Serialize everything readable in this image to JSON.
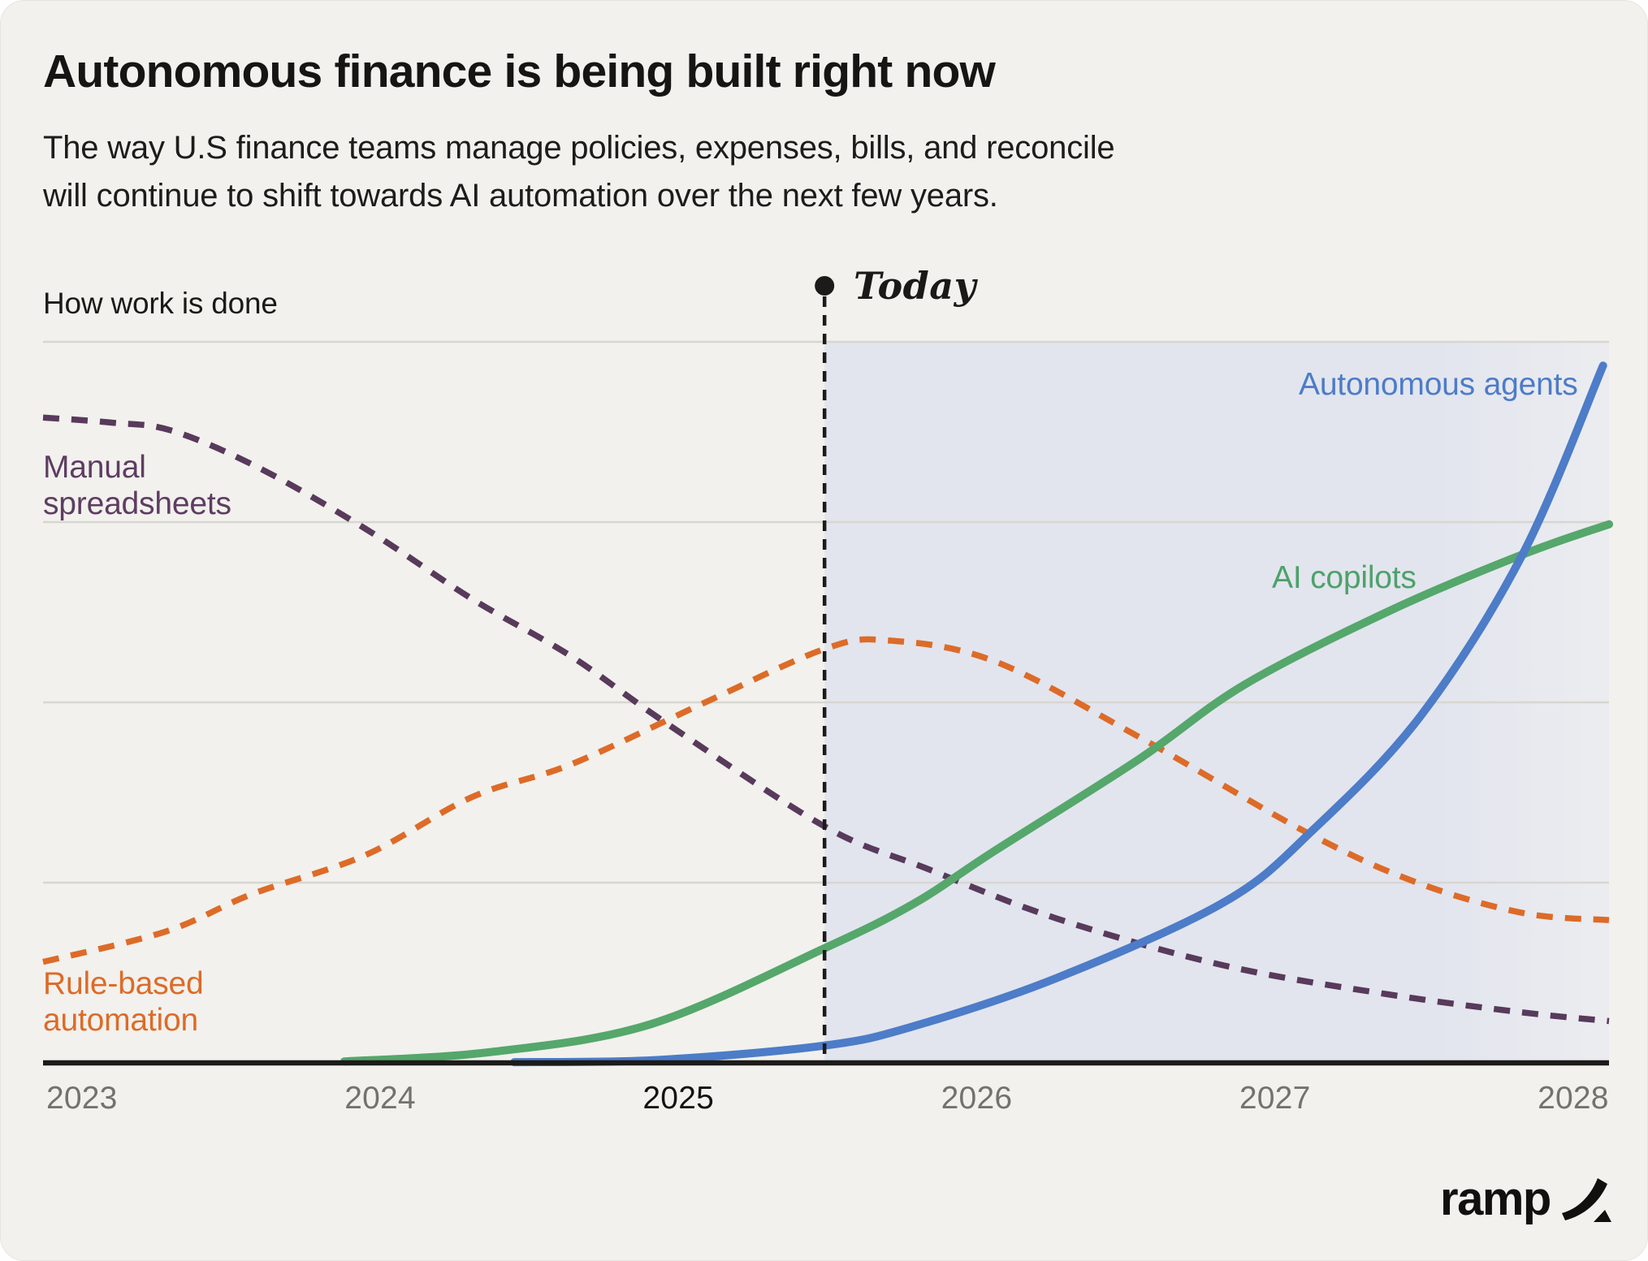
{
  "card": {
    "title": "Autonomous finance is being built right now",
    "subtitle_lines": [
      "The way U.S finance teams manage policies, expenses, bills, and reconcile",
      "will continue to shift towards AI automation over the next few years."
    ],
    "brand": "ramp"
  },
  "colors": {
    "card_background": "#f2f1ed",
    "gridline": "#d8d6d1",
    "axis": "#1c1b19",
    "tick_default": "#73726d",
    "tick_emphasized": "#131311",
    "today_marker": "#1c1b19",
    "future_shading": "#e2e5ee"
  },
  "chart_data": {
    "type": "line",
    "title": "Autonomous finance is being built right now",
    "xlabel": "",
    "ylabel": "How work is done",
    "xlim": [
      2022.87,
      2028.12
    ],
    "ylim": [
      0,
      1
    ],
    "grid": "horizontal",
    "y_gridlines": [
      0.25,
      0.5,
      0.75,
      1.0
    ],
    "legend_position": "on-curve-labels",
    "x_ticks": [
      {
        "label": "2023",
        "year": 2023,
        "emphasized": false
      },
      {
        "label": "2024",
        "year": 2024,
        "emphasized": false
      },
      {
        "label": "2025",
        "year": 2025,
        "emphasized": true
      },
      {
        "label": "2026",
        "year": 2026,
        "emphasized": false
      },
      {
        "label": "2027",
        "year": 2027,
        "emphasized": false
      },
      {
        "label": "2028",
        "year": 2028,
        "emphasized": false
      }
    ],
    "today": {
      "label": "Today",
      "year": 2025.49
    },
    "future_shading": {
      "from_year": 2025.49,
      "to_year": 2028.12
    },
    "series": [
      {
        "name": "Manual spreadsheets",
        "color": "#583a5b",
        "label_color": "#5e3d62",
        "style": "dashed",
        "points": [
          [
            2022.87,
            0.895
          ],
          [
            2023.1,
            0.888
          ],
          [
            2023.3,
            0.877
          ],
          [
            2023.59,
            0.826
          ],
          [
            2023.95,
            0.741
          ],
          [
            2024.31,
            0.643
          ],
          [
            2024.64,
            0.564
          ],
          [
            2024.96,
            0.471
          ],
          [
            2025.49,
            0.328
          ],
          [
            2025.83,
            0.27
          ],
          [
            2026.27,
            0.2
          ],
          [
            2026.83,
            0.135
          ],
          [
            2027.38,
            0.095
          ],
          [
            2027.83,
            0.07
          ],
          [
            2028.12,
            0.058
          ]
        ]
      },
      {
        "name": "Rule-based automation",
        "color": "#dd6b28",
        "label_color": "#dd6b28",
        "style": "dashed",
        "points": [
          [
            2022.87,
            0.14
          ],
          [
            2023.28,
            0.182
          ],
          [
            2023.57,
            0.234
          ],
          [
            2023.95,
            0.288
          ],
          [
            2024.31,
            0.369
          ],
          [
            2024.64,
            0.414
          ],
          [
            2025.09,
            0.5
          ],
          [
            2025.49,
            0.574
          ],
          [
            2025.7,
            0.586
          ],
          [
            2026.06,
            0.557
          ],
          [
            2026.54,
            0.453
          ],
          [
            2027.1,
            0.321
          ],
          [
            2027.47,
            0.251
          ],
          [
            2027.83,
            0.208
          ],
          [
            2028.12,
            0.198
          ]
        ]
      },
      {
        "name": "AI copilots",
        "color": "#55a76b",
        "label_color": "#4ea16a",
        "style": "solid",
        "points": [
          [
            2023.88,
            0.002
          ],
          [
            2024.37,
            0.015
          ],
          [
            2024.91,
            0.054
          ],
          [
            2025.49,
            0.159
          ],
          [
            2025.79,
            0.221
          ],
          [
            2026.06,
            0.294
          ],
          [
            2026.54,
            0.42
          ],
          [
            2026.9,
            0.525
          ],
          [
            2027.39,
            0.628
          ],
          [
            2027.83,
            0.705
          ],
          [
            2028.12,
            0.747
          ]
        ]
      },
      {
        "name": "Autonomous agents",
        "color": "#4d7cc8",
        "label_color": "#4d7cc8",
        "style": "solid",
        "points": [
          [
            2024.45,
            0.001
          ],
          [
            2024.93,
            0.004
          ],
          [
            2025.49,
            0.024
          ],
          [
            2025.79,
            0.051
          ],
          [
            2026.27,
            0.118
          ],
          [
            2026.83,
            0.223
          ],
          [
            2027.13,
            0.324
          ],
          [
            2027.49,
            0.482
          ],
          [
            2027.83,
            0.705
          ],
          [
            2028.1,
            0.967
          ]
        ]
      }
    ]
  }
}
